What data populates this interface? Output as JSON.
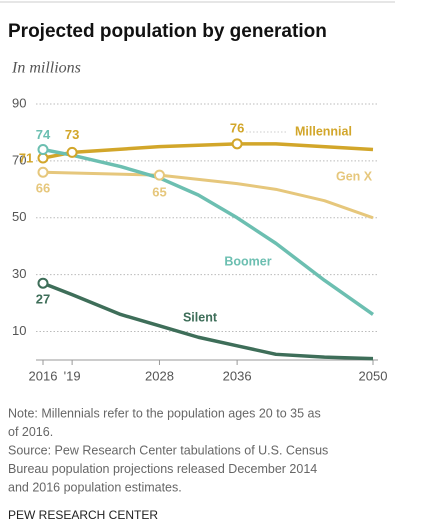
{
  "chart_data": {
    "type": "line",
    "title": "Projected population by generation",
    "subtitle": "In millions",
    "ylim": [
      0,
      90
    ],
    "yticks": [
      10,
      30,
      50,
      70,
      90
    ],
    "xlim": [
      2016,
      2050
    ],
    "xticks": [
      2016,
      {
        "value": 2019,
        "label": "'19"
      },
      2028,
      2036,
      2050
    ],
    "grid": true,
    "series": [
      {
        "name": "Millennial",
        "color": "#d2a62a",
        "x": [
          2016,
          2019,
          2028,
          2036,
          2040,
          2050
        ],
        "values": [
          71,
          73,
          75,
          76,
          76,
          74
        ],
        "value_labels": [
          "71",
          "73",
          null,
          "76",
          null,
          null
        ]
      },
      {
        "name": "Gen X",
        "color": "#e6c77c",
        "x": [
          2016,
          2028,
          2036,
          2040,
          2045,
          2050
        ],
        "values": [
          66,
          65,
          62,
          60,
          56,
          50
        ],
        "value_labels": [
          "66",
          "65",
          null,
          null,
          null,
          null
        ]
      },
      {
        "name": "Boomer",
        "color": "#6cbfb1",
        "x": [
          2016,
          2019,
          2024,
          2028,
          2032,
          2036,
          2040,
          2045,
          2050
        ],
        "values": [
          74,
          72,
          68,
          64,
          58,
          50,
          41,
          28,
          16
        ],
        "value_labels": [
          "74",
          null,
          null,
          null,
          null,
          null,
          null,
          null,
          null
        ]
      },
      {
        "name": "Silent",
        "color": "#3e6e59",
        "x": [
          2016,
          2019,
          2024,
          2028,
          2032,
          2036,
          2040,
          2045,
          2050
        ],
        "values": [
          27,
          23,
          16,
          12,
          8,
          5,
          2,
          1,
          0.5
        ],
        "value_labels": [
          "27",
          null,
          null,
          null,
          null,
          null,
          null,
          null,
          null
        ]
      }
    ],
    "notes": [
      "Note: Millennials refer to the population ages 20 to 35 as",
      "of 2016.",
      "Source: Pew Research Center tabulations of U.S. Census",
      "Bureau population projections released December 2014",
      "and 2016 population estimates."
    ],
    "source": "PEW RESEARCH CENTER"
  }
}
